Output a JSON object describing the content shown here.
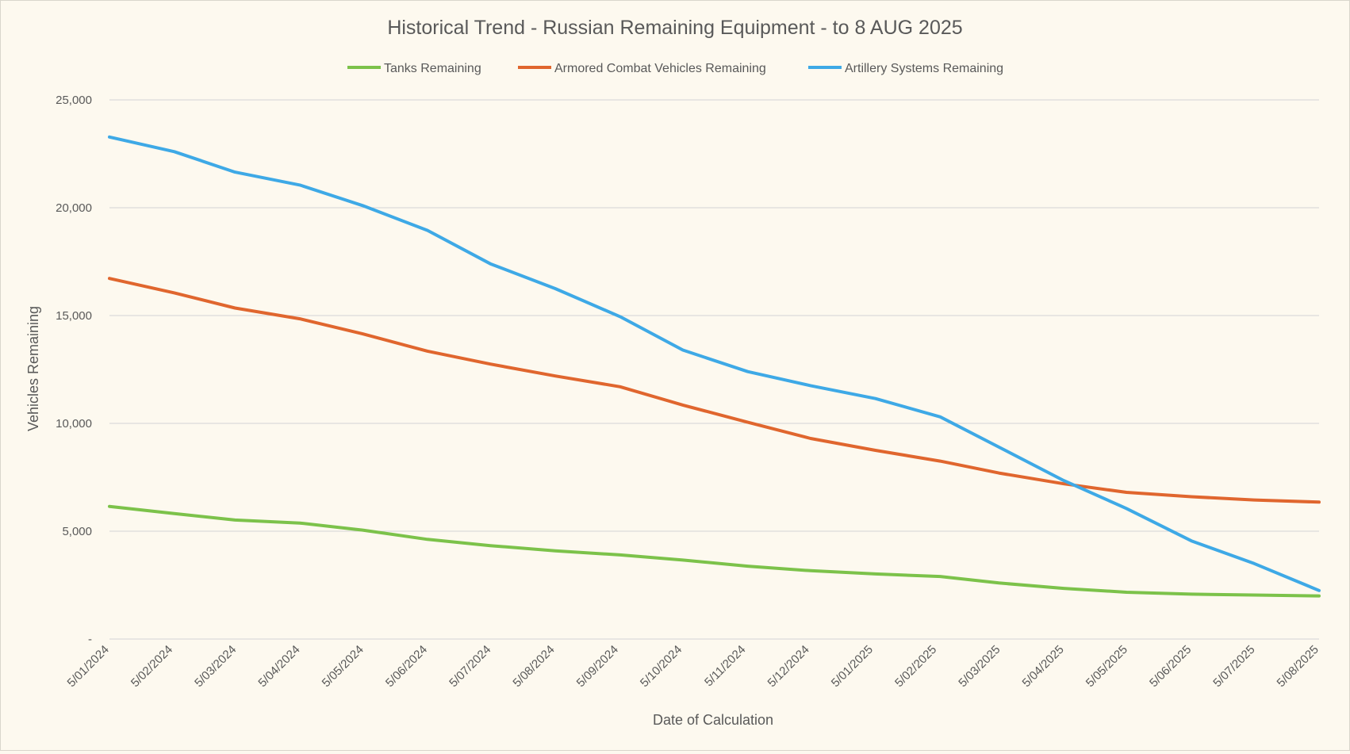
{
  "chart_data": {
    "type": "line",
    "title": "Historical Trend - Russian Remaining Equipment - to 8 AUG 2025",
    "xlabel": "Date of Calculation",
    "ylabel": "Vehicles Remaining",
    "ylim": [
      0,
      25000
    ],
    "y_ticks": [
      "-",
      "5,000",
      "10,000",
      "15,000",
      "20,000",
      "25,000"
    ],
    "x_tick_labels": [
      "5/01/2024",
      "5/02/2024",
      "5/03/2024",
      "5/04/2024",
      "5/05/2024",
      "5/06/2024",
      "5/07/2024",
      "5/08/2024",
      "5/09/2024",
      "5/10/2024",
      "5/11/2024",
      "5/12/2024",
      "5/01/2025",
      "5/02/2025",
      "5/03/2025",
      "5/04/2025",
      "5/05/2025",
      "5/06/2025",
      "5/07/2025",
      "5/08/2025"
    ],
    "grid": "horizontal",
    "legend_position": "top",
    "series": [
      {
        "name": "Tanks Remaining",
        "color": "#7cc24a",
        "points": [
          [
            "2024-01-05",
            6150
          ],
          [
            "2024-02-05",
            5820
          ],
          [
            "2024-03-05",
            5520
          ],
          [
            "2024-04-05",
            5380
          ],
          [
            "2024-05-05",
            5050
          ],
          [
            "2024-06-05",
            4620
          ],
          [
            "2024-07-05",
            4330
          ],
          [
            "2024-08-05",
            4090
          ],
          [
            "2024-09-05",
            3900
          ],
          [
            "2024-10-05",
            3660
          ],
          [
            "2024-11-05",
            3380
          ],
          [
            "2024-12-05",
            3170
          ],
          [
            "2025-01-05",
            3020
          ],
          [
            "2025-02-05",
            2900
          ],
          [
            "2025-03-05",
            2600
          ],
          [
            "2025-04-05",
            2350
          ],
          [
            "2025-05-05",
            2170
          ],
          [
            "2025-06-05",
            2080
          ],
          [
            "2025-07-05",
            2040
          ],
          [
            "2025-08-05",
            2000
          ]
        ]
      },
      {
        "name": "Armored Combat Vehicles Remaining",
        "color": "#e0662e",
        "points": [
          [
            "2024-01-05",
            16720
          ],
          [
            "2024-02-05",
            16050
          ],
          [
            "2024-03-05",
            15350
          ],
          [
            "2024-04-05",
            14850
          ],
          [
            "2024-05-05",
            14150
          ],
          [
            "2024-06-05",
            13350
          ],
          [
            "2024-07-05",
            12750
          ],
          [
            "2024-08-05",
            12200
          ],
          [
            "2024-09-05",
            11700
          ],
          [
            "2024-10-05",
            10850
          ],
          [
            "2024-11-05",
            10050
          ],
          [
            "2024-12-05",
            9300
          ],
          [
            "2025-01-05",
            8750
          ],
          [
            "2025-02-05",
            8250
          ],
          [
            "2025-03-05",
            7700
          ],
          [
            "2025-04-05",
            7200
          ],
          [
            "2025-05-05",
            6800
          ],
          [
            "2025-06-05",
            6600
          ],
          [
            "2025-07-05",
            6450
          ],
          [
            "2025-08-05",
            6350
          ]
        ]
      },
      {
        "name": "Artillery Systems Remaining",
        "color": "#3ea9e6",
        "points": [
          [
            "2024-01-05",
            23280
          ],
          [
            "2024-02-05",
            22600
          ],
          [
            "2024-03-05",
            21650
          ],
          [
            "2024-04-05",
            21050
          ],
          [
            "2024-05-05",
            20100
          ],
          [
            "2024-06-05",
            18950
          ],
          [
            "2024-07-05",
            17400
          ],
          [
            "2024-08-05",
            16250
          ],
          [
            "2024-09-05",
            14950
          ],
          [
            "2024-10-05",
            13400
          ],
          [
            "2024-11-05",
            12400
          ],
          [
            "2024-12-05",
            11750
          ],
          [
            "2025-01-05",
            11150
          ],
          [
            "2025-02-05",
            10300
          ],
          [
            "2025-03-05",
            8900
          ],
          [
            "2025-04-05",
            7350
          ],
          [
            "2025-05-05",
            6050
          ],
          [
            "2025-06-05",
            4550
          ],
          [
            "2025-07-05",
            3500
          ],
          [
            "2025-08-05",
            2250
          ]
        ]
      }
    ]
  }
}
